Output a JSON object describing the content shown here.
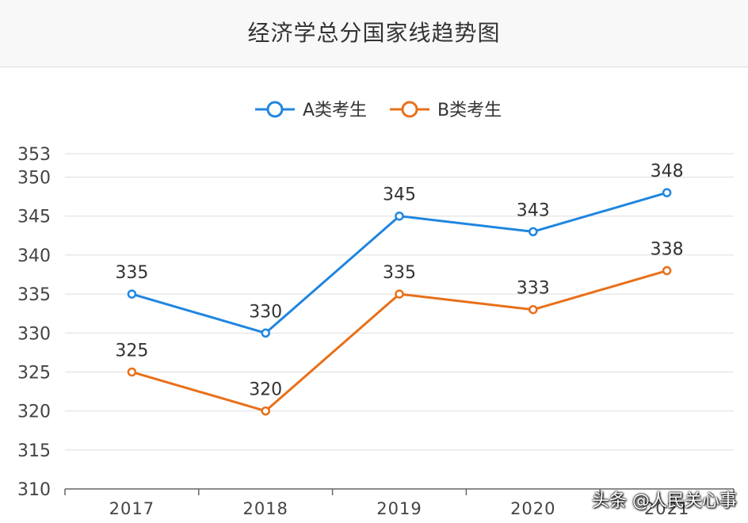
{
  "chart_data": {
    "type": "line",
    "title": "经济学总分国家线趋势图",
    "categories": [
      "2017",
      "2018",
      "2019",
      "2020",
      "2021"
    ],
    "series": [
      {
        "name": "A类考生",
        "color": "#1f86e0",
        "values": [
          335,
          330,
          345,
          343,
          348
        ]
      },
      {
        "name": "B类考生",
        "color": "#e8701a",
        "values": [
          325,
          320,
          335,
          333,
          338
        ]
      }
    ],
    "y_ticks": [
      310,
      315,
      320,
      325,
      330,
      335,
      340,
      345,
      350,
      353
    ],
    "ylim": [
      310,
      353
    ],
    "grid": true,
    "legend_position": "top-center",
    "data_labels": true
  },
  "watermark": "头条 @人民关心事"
}
